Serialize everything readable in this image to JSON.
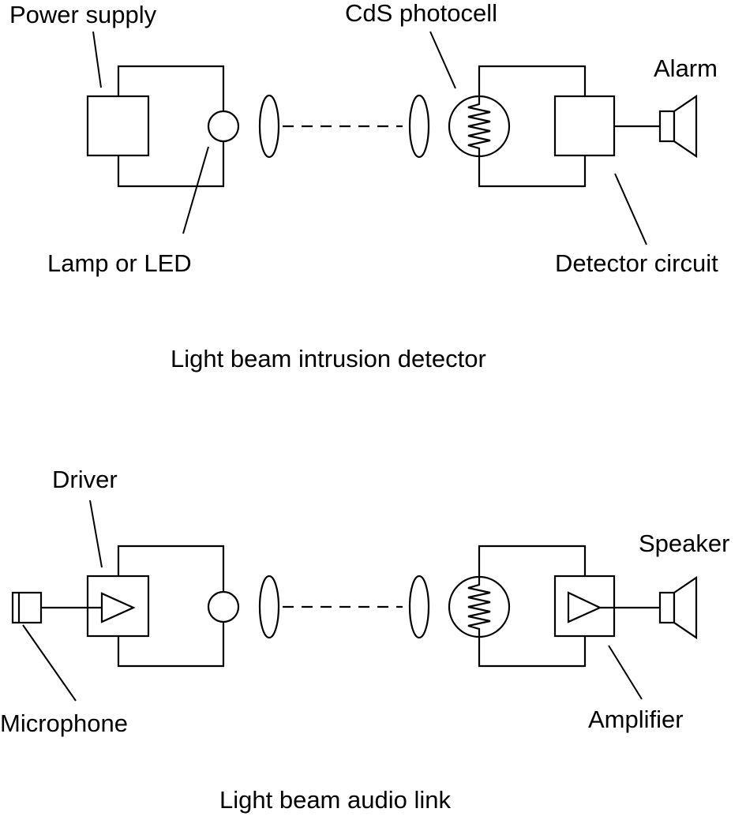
{
  "top": {
    "caption": "Light beam intrusion detector",
    "labels": {
      "power_supply": "Power supply",
      "lamp_or_led": "Lamp or LED",
      "photocell": "CdS photocell",
      "alarm": "Alarm",
      "detector_circuit": "Detector circuit"
    }
  },
  "bottom": {
    "caption": "Light beam audio link",
    "labels": {
      "driver": "Driver",
      "microphone": "Microphone",
      "speaker": "Speaker",
      "amplifier": "Amplifier"
    }
  }
}
